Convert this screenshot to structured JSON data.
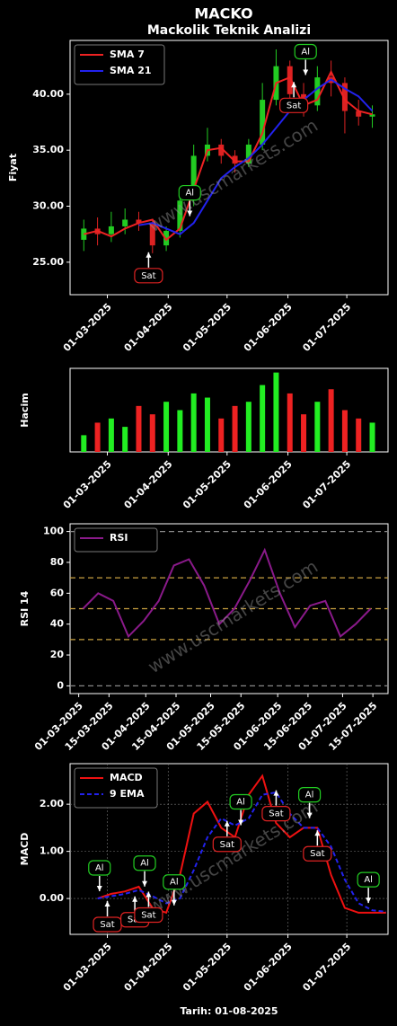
{
  "chart_data": [
    {
      "type": "candlestick",
      "title": "MACKO",
      "subtitle": "Mackolik Teknik Analizi",
      "ylabel": "Fiyat",
      "watermark": "www.uscmarkets.com",
      "xlim": [
        "10-02-2025",
        "22-07-2025"
      ],
      "xticks": [
        "01-03-2025",
        "01-04-2025",
        "01-05-2025",
        "01-06-2025",
        "01-07-2025"
      ],
      "ylim": [
        22.1,
        44.8
      ],
      "yticks": [
        {
          "value": 25,
          "label": "25.00"
        },
        {
          "value": 30,
          "label": "30.00"
        },
        {
          "value": 35,
          "label": "35.00"
        },
        {
          "value": 40,
          "label": "40.00"
        }
      ],
      "up_color": "#22cc22",
      "down_color": "#dd2222",
      "legend": "upper left",
      "x": [
        "17-02-2025",
        "24-02-2025",
        "03-03-2025",
        "10-03-2025",
        "17-03-2025",
        "24-03-2025",
        "31-03-2025",
        "07-04-2025",
        "14-04-2025",
        "21-04-2025",
        "28-04-2025",
        "05-05-2025",
        "12-05-2025",
        "19-05-2025",
        "26-05-2025",
        "02-06-2025",
        "09-06-2025",
        "16-06-2025",
        "23-06-2025",
        "30-06-2025",
        "07-07-2025",
        "14-07-2025"
      ],
      "open": [
        27.0,
        28.0,
        27.5,
        28.2,
        28.8,
        28.5,
        26.5,
        27.8,
        30.5,
        34.5,
        35.5,
        34.5,
        33.8,
        35.5,
        39.5,
        42.5,
        40.0,
        39.0,
        41.5,
        41.0,
        38.5,
        38.0
      ],
      "close": [
        28.0,
        27.5,
        28.2,
        28.8,
        28.5,
        26.5,
        27.8,
        30.5,
        34.5,
        35.5,
        34.5,
        33.8,
        35.5,
        39.5,
        42.5,
        40.0,
        39.0,
        41.5,
        41.0,
        38.5,
        38.0,
        38.2
      ],
      "high": [
        28.8,
        29.0,
        29.5,
        29.8,
        29.5,
        28.8,
        28.2,
        31.0,
        35.5,
        37.0,
        36.0,
        35.0,
        36.0,
        41.0,
        44.0,
        43.0,
        41.0,
        42.5,
        43.0,
        41.5,
        39.5,
        39.0
      ],
      "low": [
        26.0,
        26.5,
        26.8,
        27.5,
        27.8,
        25.8,
        26.0,
        27.2,
        30.0,
        34.0,
        33.8,
        33.0,
        33.5,
        35.0,
        39.0,
        39.5,
        38.0,
        38.5,
        39.8,
        36.5,
        37.2,
        37.0
      ],
      "series": [
        {
          "name": "SMA 7",
          "color": "#ee2222",
          "values": [
            27.5,
            27.8,
            27.3,
            28.0,
            28.5,
            28.8,
            27.0,
            28.0,
            31.5,
            35.0,
            35.2,
            34.0,
            34.0,
            36.5,
            41.0,
            41.5,
            39.0,
            39.5,
            42.0,
            39.5,
            38.5,
            38.2
          ]
        },
        {
          "name": "SMA 21",
          "color": "#2222ee",
          "values": [
            null,
            null,
            null,
            null,
            28.3,
            28.5,
            28.0,
            27.5,
            28.5,
            30.5,
            32.5,
            33.5,
            34.3,
            35.5,
            37.0,
            38.5,
            39.5,
            40.5,
            41.3,
            40.5,
            39.8,
            38.5
          ]
        }
      ],
      "annotations": [
        {
          "text": "Sat",
          "x": "22-03-2025",
          "y": 23.8,
          "color": "#dd2222",
          "dir": "up"
        },
        {
          "text": "Al",
          "x": "12-04-2025",
          "y": 31.2,
          "color": "#22cc22",
          "dir": "down"
        },
        {
          "text": "Sat",
          "x": "04-06-2025",
          "y": 39.0,
          "color": "#dd2222",
          "dir": "up"
        },
        {
          "text": "Al",
          "x": "10-06-2025",
          "y": 43.8,
          "color": "#22cc22",
          "dir": "down"
        }
      ]
    },
    {
      "type": "bar",
      "ylabel": "Hacim",
      "xlim": [
        "10-02-2025",
        "22-07-2025"
      ],
      "xticks": [
        "01-03-2025",
        "01-04-2025",
        "01-05-2025",
        "01-06-2025",
        "01-07-2025"
      ],
      "ylim": [
        0,
        100
      ],
      "x": [
        "17-02-2025",
        "24-02-2025",
        "03-03-2025",
        "10-03-2025",
        "17-03-2025",
        "24-03-2025",
        "31-03-2025",
        "07-04-2025",
        "14-04-2025",
        "21-04-2025",
        "28-04-2025",
        "05-05-2025",
        "12-05-2025",
        "19-05-2025",
        "26-05-2025",
        "02-06-2025",
        "09-06-2025",
        "16-06-2025",
        "23-06-2025",
        "30-06-2025",
        "07-07-2025",
        "14-07-2025"
      ],
      "values": [
        20,
        35,
        40,
        30,
        55,
        45,
        60,
        50,
        70,
        65,
        40,
        55,
        60,
        80,
        95,
        70,
        45,
        60,
        75,
        50,
        40,
        35
      ],
      "colors": [
        "#22ee22",
        "#ee2222",
        "#22ee22",
        "#22ee22",
        "#ee2222",
        "#ee2222",
        "#22ee22",
        "#22ee22",
        "#22ee22",
        "#22ee22",
        "#ee2222",
        "#ee2222",
        "#22ee22",
        "#22ee22",
        "#22ee22",
        "#ee2222",
        "#ee2222",
        "#22ee22",
        "#ee2222",
        "#ee2222",
        "#ee2222",
        "#22ee22"
      ]
    },
    {
      "type": "line",
      "ylabel": "RSI 14",
      "watermark": "www.uscmarkets.com",
      "legend": "upper left",
      "xlim": [
        "25-02-2025",
        "22-07-2025"
      ],
      "xticks": [
        "01-03-2025",
        "15-03-2025",
        "01-04-2025",
        "15-04-2025",
        "01-05-2025",
        "15-05-2025",
        "01-06-2025",
        "15-06-2025",
        "01-07-2025",
        "15-07-2025"
      ],
      "ylim": [
        -5,
        105
      ],
      "yticks": [
        0,
        20,
        40,
        60,
        80,
        100
      ],
      "hlines": [
        {
          "value": 0,
          "color": "#888888"
        },
        {
          "value": 30,
          "color": "#c8a040"
        },
        {
          "value": 50,
          "color": "#c8a040"
        },
        {
          "value": 70,
          "color": "#c8a040"
        },
        {
          "value": 100,
          "color": "#888888"
        }
      ],
      "x": [
        "03-03-2025",
        "10-03-2025",
        "17-03-2025",
        "24-03-2025",
        "31-03-2025",
        "07-04-2025",
        "14-04-2025",
        "21-04-2025",
        "28-04-2025",
        "05-05-2025",
        "12-05-2025",
        "19-05-2025",
        "26-05-2025",
        "02-06-2025",
        "09-06-2025",
        "16-06-2025",
        "23-06-2025",
        "30-06-2025",
        "07-07-2025",
        "14-07-2025"
      ],
      "series": [
        {
          "name": "RSI",
          "color": "#8a1a8a",
          "values": [
            50,
            60,
            55,
            32,
            42,
            55,
            78,
            82,
            65,
            40,
            50,
            68,
            88,
            60,
            38,
            52,
            55,
            32,
            40,
            50
          ]
        }
      ]
    },
    {
      "type": "line",
      "ylabel": "MACD",
      "xlabel": "Tarih: 01-08-2025",
      "watermark": "www.uscmarkets.com",
      "legend": "upper left",
      "grid": true,
      "xlim": [
        "10-02-2025",
        "22-07-2025"
      ],
      "xticks": [
        "01-03-2025",
        "01-04-2025",
        "01-05-2025",
        "01-06-2025",
        "01-07-2025"
      ],
      "ylim": [
        -0.76,
        2.86
      ],
      "yticks": [
        {
          "value": 0,
          "label": "0.00"
        },
        {
          "value": 1,
          "label": "1.00"
        },
        {
          "value": 2,
          "label": "2.00"
        }
      ],
      "x": [
        "24-02-2025",
        "03-03-2025",
        "10-03-2025",
        "17-03-2025",
        "24-03-2025",
        "31-03-2025",
        "07-04-2025",
        "14-04-2025",
        "21-04-2025",
        "28-04-2025",
        "05-05-2025",
        "12-05-2025",
        "19-05-2025",
        "26-05-2025",
        "02-06-2025",
        "09-06-2025",
        "16-06-2025",
        "23-06-2025",
        "30-06-2025",
        "07-07-2025",
        "14-07-2025",
        "21-07-2025"
      ],
      "series": [
        {
          "name": "MACD",
          "color": "#ee1111",
          "values": [
            0,
            0.1,
            0.15,
            0.25,
            -0.2,
            -0.3,
            0.5,
            1.8,
            2.05,
            1.5,
            1.3,
            2.2,
            2.6,
            1.6,
            1.3,
            1.5,
            1.5,
            0.5,
            -0.2,
            -0.3,
            -0.3,
            -0.3
          ]
        },
        {
          "name": "9 EMA",
          "color": "#2222ee",
          "linestyle": "dashed",
          "values": [
            0,
            0.05,
            0.1,
            0.18,
            0.05,
            -0.1,
            0.0,
            0.6,
            1.3,
            1.7,
            1.55,
            1.7,
            2.2,
            2.25,
            1.8,
            1.5,
            1.5,
            1.1,
            0.4,
            -0.1,
            -0.25,
            -0.28
          ]
        }
      ],
      "annotations": [
        {
          "text": "Al",
          "x": "25-02-2025",
          "y": 0.65,
          "color": "#22cc22",
          "dir": "down"
        },
        {
          "text": "Sat",
          "x": "01-03-2025",
          "y": -0.55,
          "color": "#dd2222",
          "dir": "up"
        },
        {
          "text": "Sat",
          "x": "15-03-2025",
          "y": -0.45,
          "color": "#dd2222",
          "dir": "up"
        },
        {
          "text": "Al",
          "x": "20-03-2025",
          "y": 0.75,
          "color": "#22cc22",
          "dir": "down"
        },
        {
          "text": "Sat",
          "x": "22-03-2025",
          "y": -0.35,
          "color": "#dd2222",
          "dir": "up"
        },
        {
          "text": "Al",
          "x": "04-04-2025",
          "y": 0.35,
          "color": "#22cc22",
          "dir": "down"
        },
        {
          "text": "Sat",
          "x": "01-05-2025",
          "y": 1.15,
          "color": "#dd2222",
          "dir": "up"
        },
        {
          "text": "Al",
          "x": "08-05-2025",
          "y": 2.05,
          "color": "#22cc22",
          "dir": "down"
        },
        {
          "text": "Sat",
          "x": "26-05-2025",
          "y": 1.8,
          "color": "#dd2222",
          "dir": "up"
        },
        {
          "text": "Al",
          "x": "12-06-2025",
          "y": 2.2,
          "color": "#22cc22",
          "dir": "down"
        },
        {
          "text": "Sat",
          "x": "16-06-2025",
          "y": 0.95,
          "color": "#dd2222",
          "dir": "up"
        },
        {
          "text": "Al",
          "x": "12-07-2025",
          "y": 0.4,
          "color": "#22cc22",
          "dir": "down"
        }
      ]
    }
  ]
}
